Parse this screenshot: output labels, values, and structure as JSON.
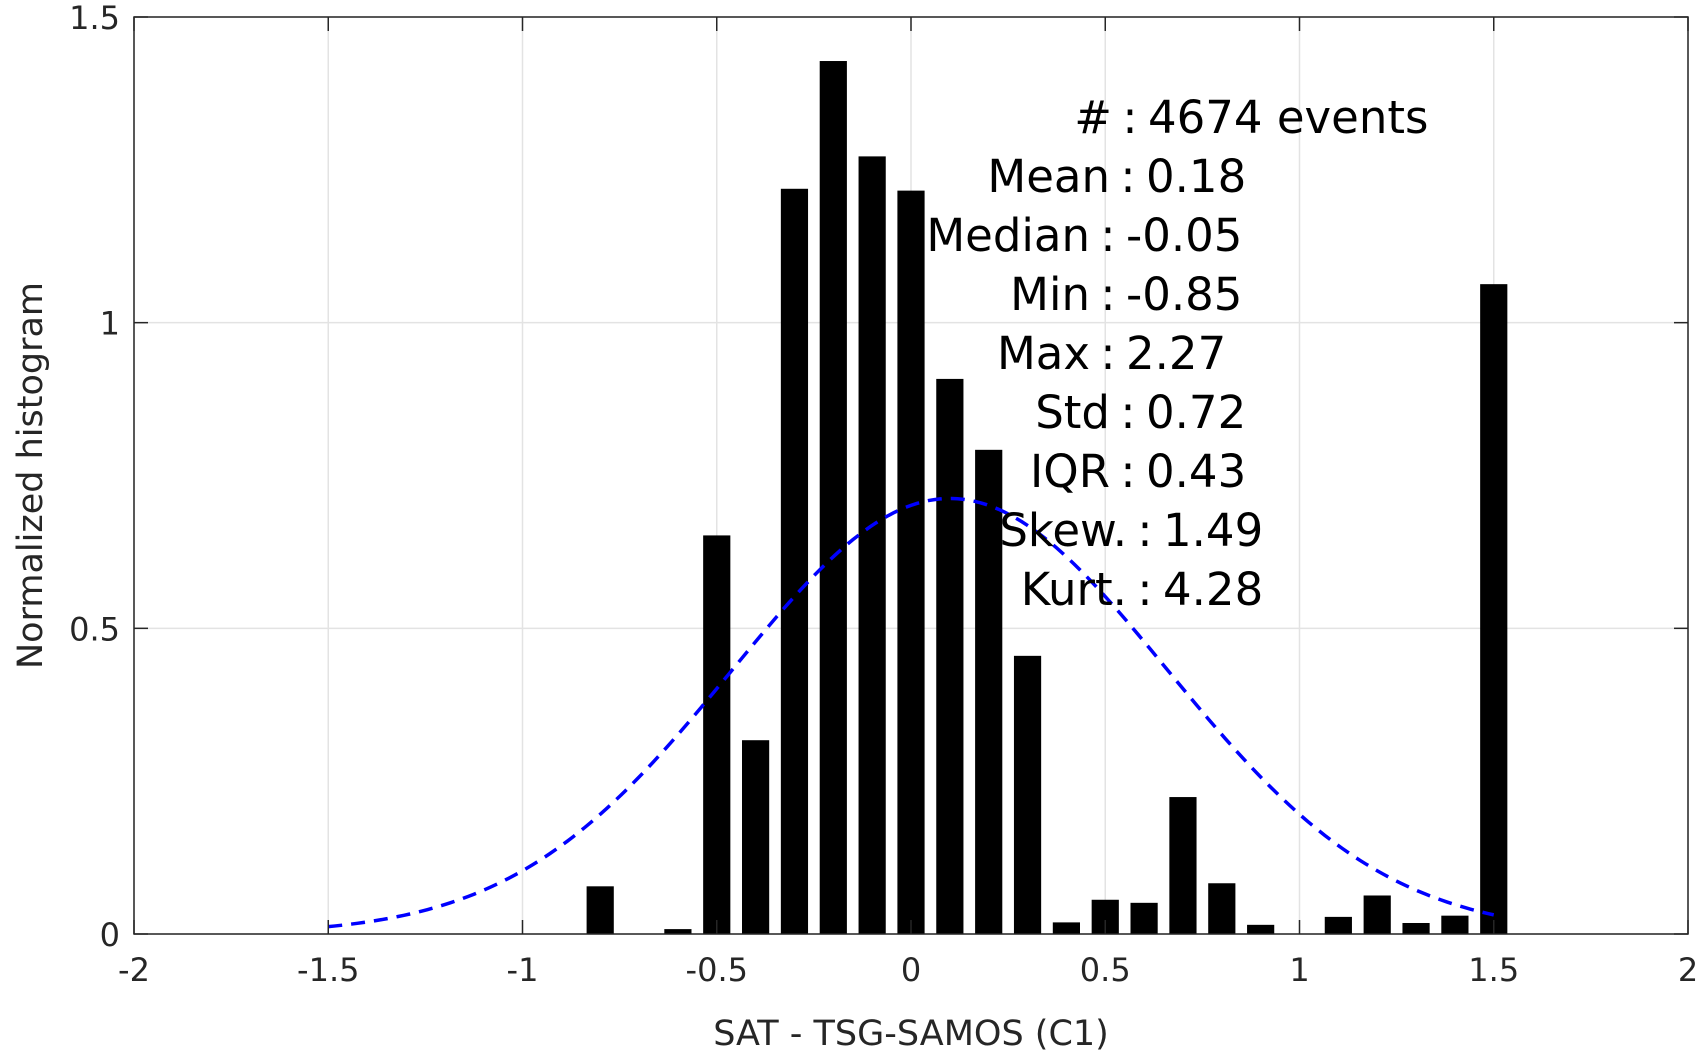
{
  "chart_data": {
    "type": "bar",
    "xlabel": "SAT - TSG-SAMOS (C1)",
    "ylabel": "Normalized histogram",
    "xlim": [
      -2,
      2
    ],
    "ylim": [
      0,
      1.5
    ],
    "xticks": [
      "-2",
      "-1.5",
      "-1",
      "-0.5",
      "0",
      "0.5",
      "1",
      "1.5",
      "2"
    ],
    "yticks": [
      "0",
      "0.5",
      "1",
      "1.5"
    ],
    "grid": true,
    "bar_width": 0.07,
    "bars": [
      {
        "x": -0.8,
        "y": 0.078
      },
      {
        "x": -0.6,
        "y": 0.008
      },
      {
        "x": -0.5,
        "y": 0.652
      },
      {
        "x": -0.4,
        "y": 0.317
      },
      {
        "x": -0.3,
        "y": 1.219
      },
      {
        "x": -0.2,
        "y": 1.428
      },
      {
        "x": -0.1,
        "y": 1.272
      },
      {
        "x": 0.0,
        "y": 1.216
      },
      {
        "x": 0.1,
        "y": 0.908
      },
      {
        "x": 0.2,
        "y": 0.792
      },
      {
        "x": 0.3,
        "y": 0.455
      },
      {
        "x": 0.4,
        "y": 0.019
      },
      {
        "x": 0.5,
        "y": 0.056
      },
      {
        "x": 0.6,
        "y": 0.051
      },
      {
        "x": 0.7,
        "y": 0.224
      },
      {
        "x": 0.8,
        "y": 0.083
      },
      {
        "x": 0.9,
        "y": 0.015
      },
      {
        "x": 1.1,
        "y": 0.028
      },
      {
        "x": 1.2,
        "y": 0.063
      },
      {
        "x": 1.3,
        "y": 0.018
      },
      {
        "x": 1.4,
        "y": 0.03
      },
      {
        "x": 1.5,
        "y": 1.063
      }
    ],
    "fit_curve": {
      "style": "dashed",
      "color": "#0000ff",
      "mean": 0.1,
      "std": 0.56,
      "x_range": [
        -1.5,
        1.5
      ]
    },
    "bar_color": "#000000",
    "stats": [
      {
        "label": "#  ",
        "value": "4674 events"
      },
      {
        "label": "Mean",
        "value": "0.18"
      },
      {
        "label": "Median",
        "value": "-0.05"
      },
      {
        "label": "Min",
        "value": "-0.85"
      },
      {
        "label": "Max",
        "value": "2.27"
      },
      {
        "label": "Std",
        "value": "0.72"
      },
      {
        "label": "IQR",
        "value": "0.43"
      },
      {
        "label": "Skew.",
        "value": "1.49"
      },
      {
        "label": "Kurt.",
        "value": "4.28"
      }
    ]
  }
}
